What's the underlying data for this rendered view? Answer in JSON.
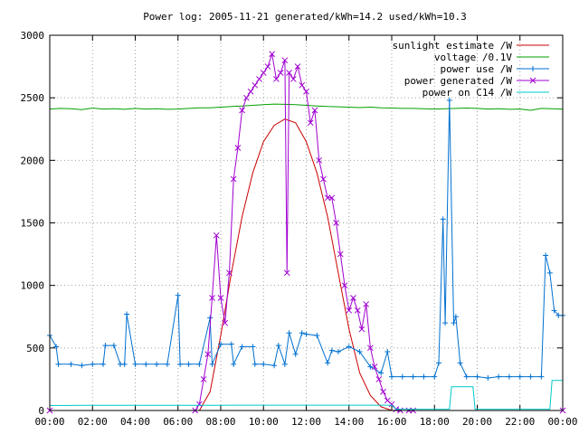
{
  "chart_data": {
    "type": "line",
    "title": "Power log: 2005-11-21 generated/kWh=14.2 used/kWh=10.3",
    "xlabel": "",
    "ylabel": "",
    "x_tick_labels": [
      "00:00",
      "02:00",
      "04:00",
      "06:00",
      "08:00",
      "10:00",
      "12:00",
      "14:00",
      "16:00",
      "18:00",
      "20:00",
      "22:00",
      "00:00"
    ],
    "y_tick_labels": [
      "0",
      "500",
      "1000",
      "1500",
      "2000",
      "2500",
      "3000"
    ],
    "xlim": [
      0,
      24
    ],
    "ylim": [
      0,
      3000
    ],
    "grid": true,
    "legend_position": "top-right",
    "series": [
      {
        "name": "sunlight estimate /W",
        "color": "#cc0000",
        "marker": "none",
        "x": [
          7.0,
          7.5,
          8.0,
          8.5,
          9.0,
          9.5,
          10.0,
          10.5,
          11.0,
          11.5,
          12.0,
          12.5,
          13.0,
          13.5,
          14.0,
          14.5,
          15.0,
          15.5,
          16.0
        ],
        "y": [
          0,
          150,
          600,
          1100,
          1550,
          1900,
          2150,
          2280,
          2330,
          2300,
          2150,
          1900,
          1550,
          1100,
          650,
          300,
          120,
          30,
          0
        ]
      },
      {
        "name": "voltage /0.1V",
        "color": "#00a000",
        "marker": "none",
        "x": [
          0,
          0.5,
          1,
          1.5,
          2,
          2.5,
          3,
          3.5,
          4,
          4.5,
          5,
          5.5,
          6,
          6.5,
          7,
          7.5,
          8,
          8.5,
          9,
          9.5,
          10,
          10.5,
          11,
          11.5,
          12,
          12.5,
          13,
          13.5,
          14,
          14.5,
          15,
          15.5,
          16,
          16.5,
          17,
          17.5,
          18,
          18.5,
          19,
          19.5,
          20,
          20.5,
          21,
          21.5,
          22,
          22.5,
          23,
          23.5,
          24
        ],
        "y": [
          2410,
          2415,
          2412,
          2405,
          2418,
          2410,
          2413,
          2408,
          2415,
          2410,
          2412,
          2408,
          2410,
          2415,
          2420,
          2420,
          2425,
          2430,
          2435,
          2440,
          2445,
          2450,
          2448,
          2445,
          2440,
          2435,
          2430,
          2428,
          2425,
          2422,
          2425,
          2420,
          2418,
          2415,
          2415,
          2412,
          2410,
          2412,
          2415,
          2418,
          2415,
          2410,
          2412,
          2408,
          2410,
          2400,
          2415,
          2412,
          2410
        ]
      },
      {
        "name": "power use /W",
        "color": "#0070d0",
        "marker": "plus",
        "x": [
          0,
          0.3,
          0.4,
          1.0,
          1.5,
          2.0,
          2.5,
          2.6,
          3.0,
          3.3,
          3.5,
          3.6,
          4.0,
          4.5,
          5.0,
          5.5,
          6.0,
          6.1,
          6.5,
          7.0,
          7.5,
          7.6,
          8.0,
          8.5,
          8.6,
          9.0,
          9.5,
          9.6,
          10.0,
          10.5,
          10.7,
          11.0,
          11.2,
          11.5,
          11.8,
          12.0,
          12.5,
          13.0,
          13.2,
          13.5,
          14.0,
          14.5,
          15.0,
          15.5,
          15.8,
          16.0,
          16.5,
          17.0,
          17.5,
          18.0,
          18.2,
          18.4,
          18.5,
          18.7,
          18.9,
          19.0,
          19.2,
          19.5,
          20.0,
          20.5,
          21.0,
          21.5,
          22.0,
          22.5,
          23.0,
          23.2,
          23.4,
          23.6,
          23.8,
          24.0
        ],
        "y": [
          600,
          510,
          370,
          370,
          360,
          370,
          370,
          520,
          520,
          370,
          370,
          770,
          370,
          370,
          370,
          370,
          920,
          370,
          370,
          370,
          740,
          370,
          530,
          530,
          370,
          510,
          510,
          370,
          370,
          360,
          520,
          370,
          620,
          450,
          620,
          610,
          600,
          380,
          480,
          470,
          510,
          470,
          350,
          300,
          470,
          270,
          270,
          270,
          270,
          270,
          380,
          1530,
          700,
          2480,
          700,
          750,
          380,
          270,
          270,
          260,
          270,
          270,
          270,
          270,
          270,
          1240,
          1100,
          800,
          760,
          760
        ]
      },
      {
        "name": "power generated /W",
        "color": "#a000d0",
        "marker": "x",
        "x": [
          0,
          6.8,
          7.0,
          7.2,
          7.4,
          7.6,
          7.8,
          8.0,
          8.2,
          8.4,
          8.6,
          8.8,
          9.0,
          9.2,
          9.4,
          9.6,
          9.8,
          10.0,
          10.2,
          10.4,
          10.6,
          10.8,
          11.0,
          11.1,
          11.2,
          11.4,
          11.6,
          11.8,
          12.0,
          12.2,
          12.4,
          12.6,
          12.8,
          13.0,
          13.2,
          13.4,
          13.6,
          13.8,
          14.0,
          14.2,
          14.4,
          14.6,
          14.8,
          15.0,
          15.2,
          15.4,
          15.6,
          15.8,
          16.0,
          16.2,
          16.4,
          16.8,
          17.0,
          24.0
        ],
        "y": [
          0,
          0,
          50,
          250,
          450,
          900,
          1400,
          900,
          700,
          1100,
          1850,
          2100,
          2400,
          2500,
          2550,
          2600,
          2650,
          2700,
          2750,
          2850,
          2650,
          2700,
          2800,
          1100,
          2700,
          2650,
          2750,
          2600,
          2550,
          2300,
          2400,
          2000,
          1850,
          1700,
          1700,
          1500,
          1250,
          1000,
          800,
          900,
          800,
          650,
          850,
          500,
          350,
          250,
          150,
          80,
          50,
          10,
          0,
          0,
          0,
          0
        ]
      },
      {
        "name": "power on C14 /W",
        "color": "#00c8c8",
        "marker": "none",
        "x": [
          0,
          2,
          4,
          6,
          8,
          10,
          12,
          14,
          16,
          16.2,
          17,
          18,
          18.7,
          18.8,
          19.8,
          19.9,
          21,
          22,
          23,
          23.4,
          23.5,
          24
        ],
        "y": [
          40,
          42,
          42,
          42,
          42,
          43,
          43,
          43,
          43,
          10,
          10,
          10,
          10,
          190,
          190,
          10,
          10,
          10,
          10,
          10,
          240,
          240
        ]
      }
    ]
  }
}
